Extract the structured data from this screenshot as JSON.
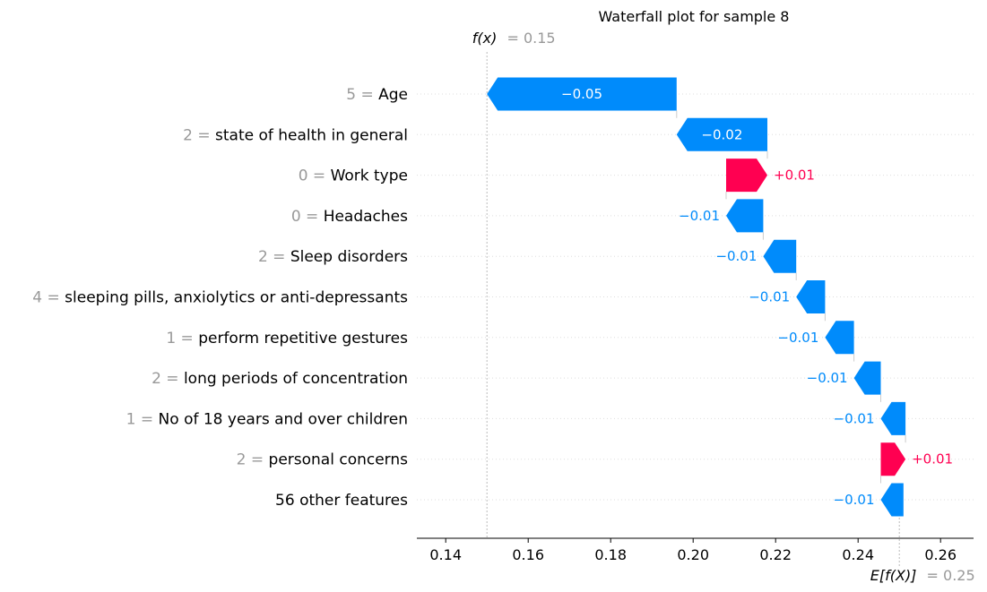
{
  "chart_data": {
    "type": "waterfall",
    "title": "Waterfall plot for sample 8",
    "fx": {
      "label": "f(x)",
      "value": 0.15,
      "value_text": "= 0.15"
    },
    "efx": {
      "label": "E[f(X)]",
      "value": 0.25,
      "value_text": "= 0.25"
    },
    "xlim": [
      0.133,
      0.268
    ],
    "xticks": [
      {
        "value": 0.14,
        "label": "0.14"
      },
      {
        "value": 0.16,
        "label": "0.16"
      },
      {
        "value": 0.18,
        "label": "0.18"
      },
      {
        "value": 0.2,
        "label": "0.20"
      },
      {
        "value": 0.22,
        "label": "0.22"
      },
      {
        "value": 0.24,
        "label": "0.24"
      },
      {
        "value": 0.26,
        "label": "0.26"
      }
    ],
    "colors": {
      "positive": "#ff0051",
      "negative": "#008bfb"
    },
    "features": [
      {
        "value_text": "5 =",
        "name": "Age",
        "contribution": -0.046,
        "label": "−0.05"
      },
      {
        "value_text": "2 =",
        "name": "state of health in general",
        "contribution": -0.022,
        "label": "−0.02"
      },
      {
        "value_text": "0 =",
        "name": "Work type",
        "contribution": 0.01,
        "label": "+0.01"
      },
      {
        "value_text": "0 =",
        "name": "Headaches",
        "contribution": -0.009,
        "label": "−0.01"
      },
      {
        "value_text": "2 =",
        "name": "Sleep disorders",
        "contribution": -0.008,
        "label": "−0.01"
      },
      {
        "value_text": "4 =",
        "name": "sleeping pills, anxiolytics or anti-depressants",
        "contribution": -0.007,
        "label": "−0.01"
      },
      {
        "value_text": "1 =",
        "name": "perform repetitive gestures",
        "contribution": -0.007,
        "label": "−0.01"
      },
      {
        "value_text": "2 =",
        "name": "long periods of concentration",
        "contribution": -0.0065,
        "label": "−0.01"
      },
      {
        "value_text": "1 =",
        "name": "No of 18 years and over children",
        "contribution": -0.006,
        "label": "−0.01"
      },
      {
        "value_text": "2 =",
        "name": "personal concerns",
        "contribution": 0.006,
        "label": "+0.01"
      },
      {
        "value_text": "",
        "name": "56 other features",
        "contribution": -0.0055,
        "label": "−0.01"
      }
    ]
  }
}
